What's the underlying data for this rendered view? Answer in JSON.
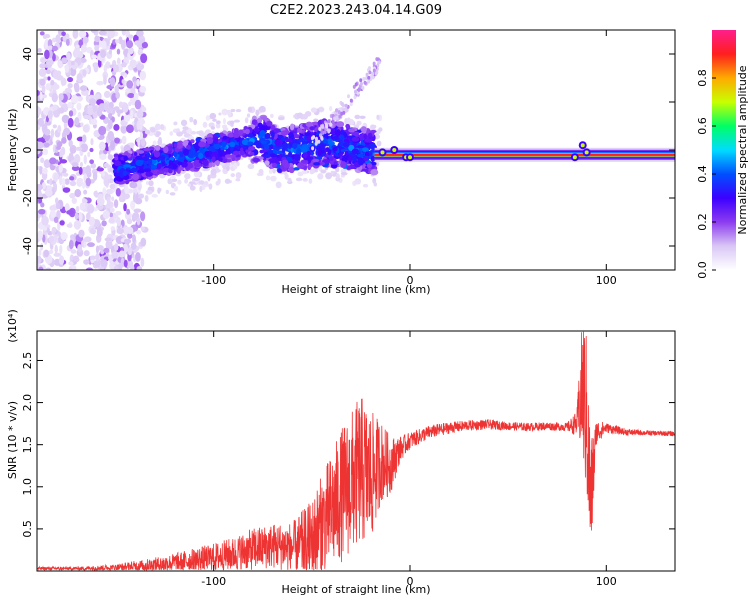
{
  "figure": {
    "title": "C2E2.2023.243.04.14.G09"
  },
  "chart_data": [
    {
      "type": "heatmap",
      "title": "C2E2.2023.243.04.14.G09",
      "xlabel": "Height of straight line (km)",
      "ylabel": "Frequency (Hz)",
      "xlim": [
        -190,
        135
      ],
      "ylim": [
        -50,
        50
      ],
      "x_ticks": [
        -100,
        0,
        100
      ],
      "x_tick_labels": [
        "-100",
        "0",
        "100"
      ],
      "y_ticks": [
        -40,
        -20,
        0,
        20,
        40
      ],
      "y_tick_labels": [
        "-40",
        "-20",
        "0",
        "20",
        "40"
      ],
      "colorbar": {
        "label": "Normalized spectral amplitude",
        "range": [
          0,
          1
        ],
        "ticks": [
          0.0,
          0.2,
          0.4,
          0.6,
          0.8
        ],
        "tick_labels": [
          "0.0",
          "0.2",
          "0.4",
          "0.6",
          "0.8"
        ],
        "colormap": [
          "#ffffff",
          "#d9c6f5",
          "#8c3cf0",
          "#3c00ff",
          "#0050ff",
          "#00dcff",
          "#00ff64",
          "#c8ff00",
          "#ffaa00",
          "#ff1e1e",
          "#ff1e8c"
        ]
      },
      "ridge": {
        "description_points_km_hz": [
          [
            -150,
            -8
          ],
          [
            -130,
            -5
          ],
          [
            -110,
            -2
          ],
          [
            -90,
            2
          ],
          [
            -75,
            5
          ],
          [
            -68,
            0
          ],
          [
            -55,
            1
          ],
          [
            -45,
            3
          ],
          [
            -35,
            2
          ],
          [
            -25,
            0
          ],
          [
            -15,
            -1
          ],
          [
            0,
            -3
          ],
          [
            50,
            -2
          ],
          [
            100,
            -2
          ],
          [
            135,
            -2
          ]
        ]
      },
      "grid": false
    },
    {
      "type": "line",
      "xlabel": "Height of straight line (km)",
      "ylabel": "SNR (10 * v/v)",
      "y_multiplier": "(x10⁴)",
      "xlim": [
        -190,
        135
      ],
      "ylim": [
        0,
        28500
      ],
      "x_ticks": [
        -100,
        0,
        100
      ],
      "x_tick_labels": [
        "-100",
        "0",
        "100"
      ],
      "y_ticks": [
        5000,
        10000,
        15000,
        20000,
        25000
      ],
      "y_tick_labels": [
        "0.5",
        "1.0",
        "1.5",
        "2.0",
        "2.5"
      ],
      "series": [
        {
          "color": "#ee3333",
          "envelope_x": [
            -190,
            -170,
            -150,
            -130,
            -120,
            -110,
            -100,
            -90,
            -80,
            -70,
            -60,
            -50,
            -45,
            -40,
            -35,
            -30,
            -25,
            -20,
            -15,
            -10,
            -5,
            0,
            10,
            20,
            30,
            40,
            50,
            60,
            70,
            80,
            85,
            88,
            90,
            92,
            95,
            100,
            110,
            120,
            135
          ],
          "envelope_y": [
            300,
            300,
            400,
            700,
            1000,
            1300,
            1600,
            2000,
            2600,
            3000,
            2800,
            3500,
            5500,
            7000,
            9000,
            10500,
            12000,
            11000,
            13000,
            12500,
            14500,
            15500,
            16500,
            17000,
            17300,
            17400,
            17200,
            17100,
            17200,
            17100,
            17500,
            22000,
            18000,
            8000,
            16500,
            17000,
            16500,
            16400,
            16300
          ],
          "noise_amplitude": [
            200,
            200,
            400,
            900,
            1100,
            1400,
            1700,
            2000,
            2500,
            2700,
            3000,
            5000,
            6000,
            7000,
            8000,
            8500,
            9000,
            8000,
            5000,
            3500,
            1500,
            1000,
            800,
            700,
            600,
            600,
            500,
            500,
            500,
            500,
            1500,
            9000,
            10000,
            8000,
            1500,
            600,
            400,
            300,
            300
          ]
        }
      ],
      "grid": false
    }
  ]
}
